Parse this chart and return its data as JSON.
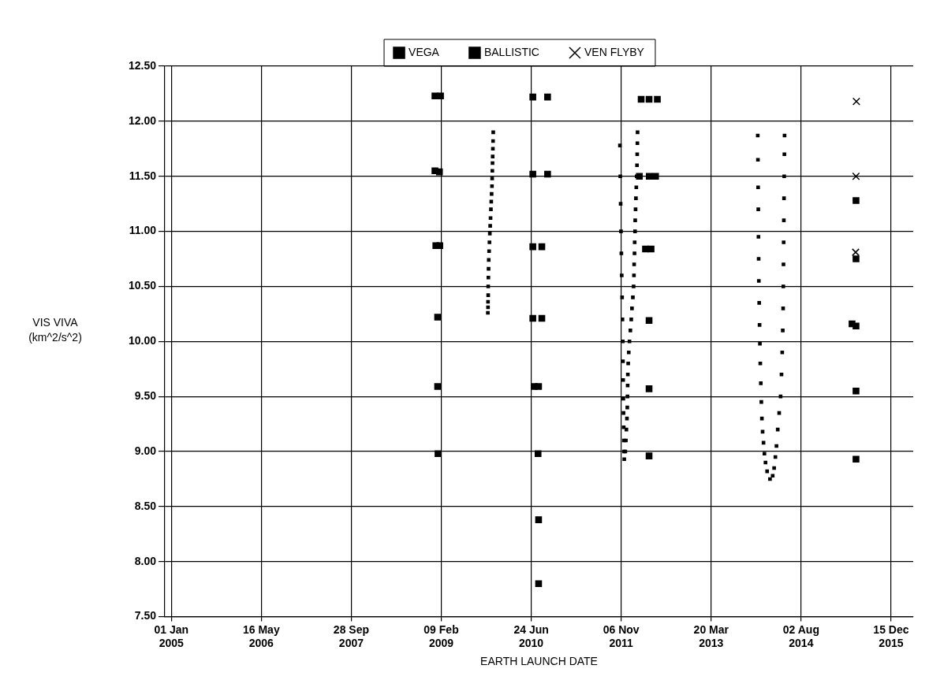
{
  "chart_data": {
    "type": "scatter",
    "xlabel": "EARTH LAUNCH DATE",
    "ylabel": "VIS VIVA (km^2/s^2)",
    "xlim": [
      "2004-11-26",
      "2016-04-16"
    ],
    "xticks": [
      {
        "value": "2005-01-01",
        "label": "01 Jan 2005"
      },
      {
        "value": "2006-05-16",
        "label": "16 May 2006"
      },
      {
        "value": "2007-09-28",
        "label": "28 Sep 2007"
      },
      {
        "value": "2009-02-09",
        "label": "09 Feb 2009"
      },
      {
        "value": "2010-06-24",
        "label": "24 Jun 2010"
      },
      {
        "value": "2011-11-06",
        "label": "06 Nov 2011"
      },
      {
        "value": "2013-03-20",
        "label": "20 Mar 2013"
      },
      {
        "value": "2014-08-02",
        "label": "02 Aug 2014"
      },
      {
        "value": "2015-12-15",
        "label": "15 Dec 2015"
      }
    ],
    "ylim": [
      7.5,
      12.5
    ],
    "yticks": [
      {
        "value": 7.5,
        "label": "7.50"
      },
      {
        "value": 8,
        "label": "8.00"
      },
      {
        "value": 8.5,
        "label": "8.50"
      },
      {
        "value": 9,
        "label": "9.00"
      },
      {
        "value": 9.5,
        "label": "9.50"
      },
      {
        "value": 10,
        "label": "10.00"
      },
      {
        "value": 10.5,
        "label": "10.50"
      },
      {
        "value": 11,
        "label": "11.00"
      },
      {
        "value": 11.5,
        "label": "11.50"
      },
      {
        "value": 12,
        "label": "12.00"
      },
      {
        "value": 12.5,
        "label": "12.50"
      }
    ],
    "grid": true,
    "legend": "top",
    "series": [
      {
        "name": "VEGA",
        "color": "#000000",
        "marker": "square",
        "x": [
          "2009-01-05",
          "2009-02-05",
          "2009-01-05",
          "2009-01-30",
          "2009-01-10",
          "2009-02-01",
          "2009-01-20",
          "2009-01-20",
          "2009-01-22",
          "2010-07-03",
          "2010-09-23",
          "2010-07-03",
          "2010-09-23",
          "2010-07-03",
          "2010-08-22",
          "2010-07-03",
          "2010-08-22",
          "2010-07-10",
          "2010-08-04",
          "2010-08-01",
          "2010-08-04",
          "2010-08-04",
          "2012-02-25",
          "2012-04-09",
          "2012-05-25",
          "2012-02-15",
          "2012-04-10",
          "2012-05-15",
          "2012-03-20",
          "2012-04-20",
          "2012-04-09",
          "2012-04-09",
          "2012-04-09",
          "2015-06-03",
          "2015-06-03",
          "2015-05-12",
          "2015-06-03",
          "2015-06-03",
          "2015-06-03"
        ],
        "values": [
          12.23,
          12.23,
          11.55,
          11.54,
          10.87,
          10.87,
          10.22,
          9.59,
          8.98,
          12.22,
          12.22,
          11.52,
          11.52,
          10.86,
          10.86,
          10.21,
          10.21,
          9.59,
          9.59,
          8.98,
          8.38,
          7.8,
          12.2,
          12.2,
          12.2,
          11.5,
          11.5,
          11.5,
          10.84,
          10.84,
          10.19,
          9.57,
          8.96,
          11.28,
          10.75,
          10.16,
          10.14,
          9.55,
          8.93
        ]
      },
      {
        "name": "BALLISTIC",
        "color": "#000000",
        "marker": "square",
        "x": [
          "2009-11-25",
          "2009-11-24",
          "2009-11-23",
          "2009-11-22",
          "2009-11-21",
          "2009-11-20",
          "2009-11-19",
          "2009-11-18",
          "2009-11-16",
          "2009-11-14",
          "2009-11-12",
          "2009-11-10",
          "2009-11-08",
          "2009-11-06",
          "2009-11-04",
          "2009-11-02",
          "2009-10-31",
          "2009-10-30",
          "2009-10-29",
          "2009-10-28",
          "2009-10-28",
          "2009-10-27",
          "2009-10-27",
          "2009-10-26",
          "2011-10-30",
          "2011-11-01",
          "2011-11-03",
          "2011-11-05",
          "2011-11-07",
          "2011-11-09",
          "2011-11-11",
          "2011-11-13",
          "2011-11-15",
          "2011-11-16",
          "2011-11-17",
          "2011-11-18",
          "2011-11-19",
          "2011-11-20",
          "2011-11-21",
          "2011-11-22",
          "2011-11-23",
          "2012-02-05",
          "2012-02-04",
          "2012-02-03",
          "2012-02-02",
          "2012-01-31",
          "2012-01-29",
          "2012-01-27",
          "2012-01-25",
          "2012-01-23",
          "2012-01-22",
          "2012-01-20",
          "2012-01-19",
          "2012-01-17",
          "2012-01-16",
          "2012-01-14",
          "2012-01-10",
          "2012-01-05",
          "2012-01-01",
          "2011-12-27",
          "2011-12-22",
          "2011-12-18",
          "2011-12-15",
          "2011-12-13",
          "2011-12-12",
          "2011-12-11",
          "2011-12-10",
          "2011-12-08",
          "2011-12-05",
          "2011-12-02",
          "2011-11-29",
          "2013-12-04",
          "2013-12-05",
          "2013-12-06",
          "2013-12-07",
          "2013-12-08",
          "2013-12-09",
          "2013-12-10",
          "2013-12-12",
          "2013-12-14",
          "2013-12-16",
          "2013-12-18",
          "2013-12-21",
          "2013-12-24",
          "2013-12-27",
          "2013-12-31",
          "2014-01-05",
          "2014-01-10",
          "2014-01-16",
          "2014-01-25",
          "2014-02-10",
          "2014-02-25",
          "2014-03-05",
          "2014-03-12",
          "2014-03-18",
          "2014-03-25",
          "2014-04-02",
          "2014-04-10",
          "2014-04-15",
          "2014-04-19",
          "2014-04-22",
          "2014-04-24",
          "2014-04-25",
          "2014-04-26",
          "2014-04-27",
          "2014-04-28",
          "2014-04-29",
          "2014-04-30",
          "2014-05-01",
          "2014-05-02"
        ],
        "values": [
          11.9,
          11.82,
          11.75,
          11.68,
          11.62,
          11.55,
          11.48,
          11.41,
          11.34,
          11.27,
          11.2,
          11.12,
          11.05,
          10.98,
          10.9,
          10.82,
          10.74,
          10.66,
          10.58,
          10.5,
          10.42,
          10.36,
          10.31,
          10.26,
          11.78,
          11.5,
          11.25,
          11.0,
          10.8,
          10.6,
          10.4,
          10.2,
          10.0,
          9.82,
          9.65,
          9.48,
          9.35,
          9.22,
          9.1,
          9.0,
          8.93,
          11.9,
          11.8,
          11.7,
          11.6,
          11.5,
          11.4,
          11.3,
          11.2,
          11.1,
          11.0,
          10.9,
          10.8,
          10.7,
          10.6,
          10.5,
          10.4,
          10.3,
          10.2,
          10.1,
          10.0,
          9.9,
          9.8,
          9.7,
          9.6,
          9.5,
          9.4,
          9.3,
          9.2,
          9.1,
          9.0,
          11.87,
          11.65,
          11.4,
          11.2,
          10.95,
          10.75,
          10.55,
          10.35,
          10.15,
          9.98,
          9.8,
          9.62,
          9.45,
          9.3,
          9.18,
          9.08,
          8.98,
          8.9,
          8.82,
          8.75,
          8.78,
          8.85,
          8.95,
          9.05,
          9.2,
          9.35,
          9.5,
          9.7,
          9.9,
          10.1,
          10.3,
          10.5,
          10.7,
          10.9,
          11.1,
          11.3,
          11.5,
          11.7,
          11.87
        ]
      },
      {
        "name": "VEN FLYBY",
        "color": "#000000",
        "marker": "cross",
        "x": [
          "2015-06-05",
          "2015-06-03",
          "2015-06-01"
        ],
        "values": [
          12.18,
          11.5,
          10.81
        ]
      }
    ]
  }
}
